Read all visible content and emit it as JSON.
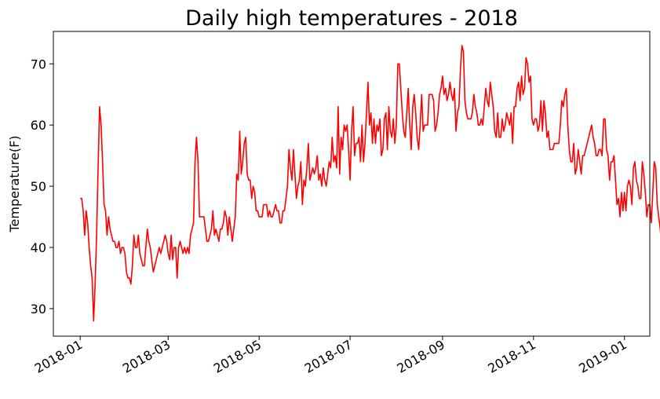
{
  "chart_data": {
    "type": "line",
    "title": "Daily high temperatures - 2018",
    "xlabel": "",
    "ylabel": "Temperature(F)",
    "x_start": "2018-01-01",
    "xlim": [
      "2017-12-14",
      "2019-01-18"
    ],
    "ylim": [
      25.5,
      75.3
    ],
    "xticks": [
      "2018-01",
      "2018-03",
      "2018-05",
      "2018-07",
      "2018-09",
      "2018-11",
      "2019-01"
    ],
    "yticks": [
      30,
      40,
      50,
      60,
      70
    ],
    "grid": false,
    "colors": {
      "line": "#ff0000",
      "frame": "#000000"
    },
    "series": [
      {
        "values": [
          48,
          48,
          46,
          42,
          46,
          44,
          40,
          37,
          35,
          28,
          34,
          42,
          53,
          63,
          60,
          54,
          47,
          46,
          42,
          45,
          43,
          42,
          41,
          41,
          40,
          40,
          41,
          39,
          40,
          40,
          39,
          36,
          35,
          35,
          34,
          37,
          42,
          40,
          40,
          42,
          39,
          38,
          37,
          37,
          40,
          43,
          41,
          40,
          38,
          36,
          37,
          38,
          39,
          40,
          39,
          40,
          41,
          42,
          41,
          39,
          38,
          42,
          38,
          40,
          40,
          35,
          40,
          41,
          40,
          39,
          40,
          39,
          40,
          39,
          42,
          43,
          44,
          54,
          58,
          54,
          45,
          45,
          45,
          45,
          43,
          41,
          41,
          42,
          43,
          46,
          42,
          43,
          42,
          41,
          43,
          43,
          44,
          46,
          45,
          42,
          45,
          43,
          41,
          43,
          45,
          52,
          51,
          59,
          52,
          54,
          57,
          58,
          52,
          51,
          51,
          48,
          50,
          49,
          46,
          46,
          45,
          45,
          45,
          47,
          47,
          47,
          45,
          46,
          45,
          45,
          46,
          47,
          46,
          46,
          44,
          44,
          46,
          46,
          48,
          50,
          56,
          53,
          51,
          56,
          52,
          48,
          50,
          51,
          54,
          47,
          51,
          50,
          53,
          57,
          51,
          52,
          53,
          52,
          53,
          55,
          51,
          52,
          50,
          53,
          51,
          50,
          52,
          54,
          53,
          58,
          54,
          55,
          53,
          63,
          52,
          58,
          56,
          60,
          59,
          60,
          56,
          51,
          59,
          63,
          55,
          57,
          57,
          58,
          54,
          60,
          54,
          57,
          62,
          67,
          60,
          62,
          57,
          61,
          57,
          60,
          59,
          61,
          55,
          56,
          61,
          62,
          56,
          63,
          59,
          58,
          61,
          57,
          60,
          70,
          70,
          66,
          62,
          59,
          58,
          62,
          66,
          60,
          56,
          63,
          65,
          62,
          58,
          56,
          60,
          65,
          59,
          60,
          60,
          60,
          65,
          65,
          65,
          64,
          59,
          60,
          62,
          65,
          66,
          68,
          65,
          66,
          64,
          65,
          67,
          65,
          64,
          66,
          59,
          62,
          63,
          69,
          73,
          72,
          64,
          62,
          61,
          61,
          61,
          62,
          65,
          63,
          62,
          60,
          60,
          61,
          60,
          63,
          66,
          64,
          63,
          67,
          65,
          63,
          59,
          58,
          62,
          58,
          58,
          61,
          59,
          60,
          62,
          61,
          60,
          62,
          57,
          63,
          63,
          66,
          67,
          64,
          68,
          65,
          66,
          71,
          70,
          67,
          68,
          61,
          60,
          61,
          61,
          59,
          60,
          64,
          59,
          64,
          62,
          58,
          59,
          56,
          56,
          56,
          57,
          57,
          57,
          57,
          60,
          64,
          63,
          65,
          66,
          60,
          56,
          54,
          54,
          57,
          52,
          53,
          56,
          54,
          52,
          55,
          55,
          56,
          57,
          58,
          59,
          60,
          58,
          57,
          55,
          55,
          56,
          56,
          55,
          61,
          61,
          56,
          55,
          51,
          54,
          54,
          55,
          51,
          47,
          48,
          45,
          49,
          46,
          49,
          46,
          50,
          51,
          50,
          47,
          53,
          54,
          51,
          50,
          48,
          48,
          54,
          52,
          49,
          45,
          47,
          47,
          44,
          49,
          54,
          53,
          47,
          45,
          43,
          40,
          36,
          39,
          39,
          41,
          41,
          41,
          44,
          47,
          52,
          50,
          46,
          48,
          48,
          43,
          44,
          45,
          46,
          49,
          47,
          47,
          48,
          43,
          39,
          43,
          41,
          44,
          43,
          41,
          43,
          46,
          47,
          46,
          38,
          43,
          48
        ]
      }
    ]
  }
}
